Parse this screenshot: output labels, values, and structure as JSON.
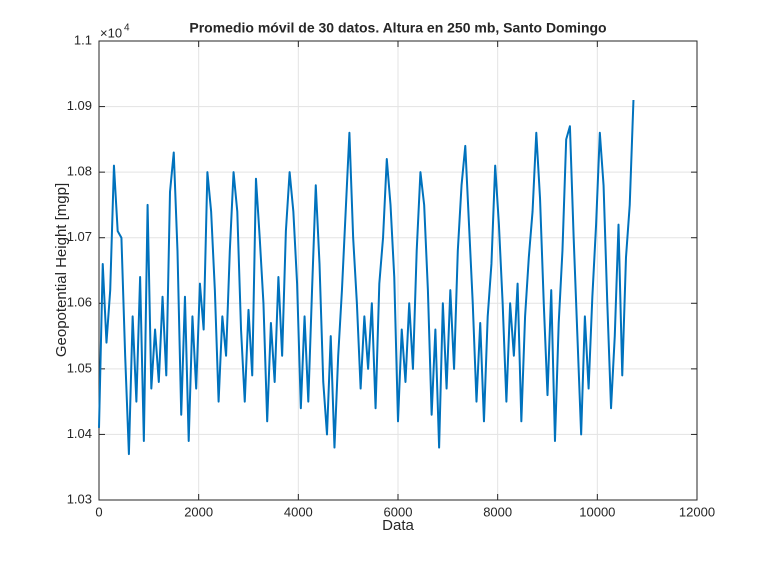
{
  "chart_data": {
    "type": "line",
    "title": "Promedio móvil de 30 datos. Altura en 250 mb, Santo Domingo",
    "x_label": "Data",
    "y_label": "Geopotential Height [mgp]",
    "y_multiplier": {
      "base": "×10",
      "exponent": "4"
    },
    "xlim": [
      0,
      12000
    ],
    "xticks": [
      0,
      2000,
      4000,
      6000,
      8000,
      10000,
      12000
    ],
    "ylim": [
      1.03,
      1.1
    ],
    "yticks": [
      1.03,
      1.04,
      1.05,
      1.06,
      1.07,
      1.08,
      1.09,
      1.1
    ],
    "grid": true,
    "x": [
      0,
      75,
      150,
      225,
      300,
      375,
      450,
      525,
      600,
      675,
      750,
      825,
      900,
      975,
      1050,
      1125,
      1200,
      1275,
      1350,
      1425,
      1500,
      1575,
      1650,
      1725,
      1800,
      1875,
      1950,
      2025,
      2100,
      2175,
      2250,
      2325,
      2400,
      2475,
      2550,
      2625,
      2700,
      2775,
      2850,
      2925,
      3000,
      3075,
      3150,
      3225,
      3300,
      3375,
      3450,
      3525,
      3600,
      3675,
      3750,
      3825,
      3900,
      3975,
      4050,
      4125,
      4200,
      4275,
      4350,
      4425,
      4500,
      4575,
      4650,
      4725,
      4800,
      4875,
      4950,
      5025,
      5100,
      5175,
      5250,
      5325,
      5400,
      5475,
      5550,
      5625,
      5700,
      5775,
      5850,
      5925,
      6000,
      6075,
      6150,
      6225,
      6300,
      6375,
      6450,
      6525,
      6600,
      6675,
      6750,
      6825,
      6900,
      6975,
      7050,
      7125,
      7200,
      7275,
      7350,
      7425,
      7500,
      7575,
      7650,
      7725,
      7800,
      7875,
      7950,
      8025,
      8100,
      8175,
      8250,
      8325,
      8400,
      8475,
      8550,
      8625,
      8700,
      8775,
      8850,
      8925,
      9000,
      9075,
      9150,
      9225,
      9300,
      9375,
      9450,
      9525,
      9600,
      9675,
      9750,
      9825,
      9900,
      9975,
      10050,
      10125,
      10200,
      10275,
      10350,
      10425,
      10500,
      10575,
      10650,
      10725
    ],
    "series": [
      {
        "color": "#0072bd",
        "values": [
          1.041,
          1.066,
          1.054,
          1.062,
          1.081,
          1.071,
          1.07,
          1.052,
          1.037,
          1.058,
          1.045,
          1.064,
          1.039,
          1.075,
          1.047,
          1.056,
          1.048,
          1.061,
          1.049,
          1.077,
          1.083,
          1.068,
          1.043,
          1.061,
          1.039,
          1.058,
          1.047,
          1.063,
          1.056,
          1.08,
          1.074,
          1.062,
          1.045,
          1.058,
          1.052,
          1.068,
          1.08,
          1.074,
          1.056,
          1.045,
          1.059,
          1.049,
          1.079,
          1.07,
          1.06,
          1.042,
          1.057,
          1.048,
          1.064,
          1.052,
          1.071,
          1.08,
          1.074,
          1.063,
          1.044,
          1.058,
          1.045,
          1.062,
          1.078,
          1.066,
          1.048,
          1.04,
          1.055,
          1.038,
          1.052,
          1.062,
          1.074,
          1.086,
          1.07,
          1.06,
          1.047,
          1.058,
          1.05,
          1.06,
          1.044,
          1.063,
          1.07,
          1.082,
          1.075,
          1.064,
          1.042,
          1.056,
          1.048,
          1.06,
          1.05,
          1.068,
          1.08,
          1.075,
          1.062,
          1.043,
          1.056,
          1.038,
          1.06,
          1.047,
          1.062,
          1.05,
          1.068,
          1.078,
          1.084,
          1.072,
          1.06,
          1.045,
          1.057,
          1.042,
          1.058,
          1.066,
          1.081,
          1.072,
          1.06,
          1.045,
          1.06,
          1.052,
          1.063,
          1.042,
          1.058,
          1.067,
          1.074,
          1.086,
          1.076,
          1.06,
          1.046,
          1.062,
          1.039,
          1.057,
          1.068,
          1.085,
          1.087,
          1.07,
          1.055,
          1.04,
          1.058,
          1.047,
          1.061,
          1.072,
          1.086,
          1.078,
          1.06,
          1.044,
          1.055,
          1.072,
          1.049,
          1.067,
          1.075,
          1.091
        ]
      }
    ]
  }
}
